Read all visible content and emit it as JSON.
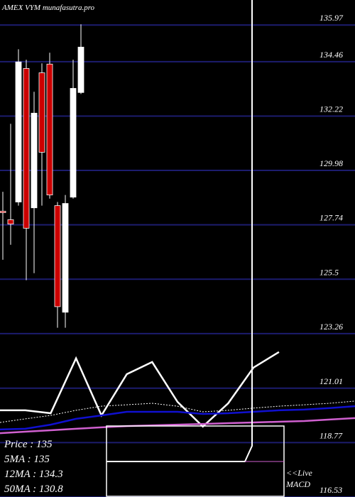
{
  "chart_data": {
    "type": "candlestick",
    "title": "AMEX  VYM munafasutra.pro",
    "ylim": [
      116.53,
      137.0
    ],
    "yticks": [
      135.97,
      134.46,
      132.22,
      129.98,
      127.74,
      125.5,
      123.26,
      121.01,
      118.77,
      116.53
    ],
    "grid": true,
    "grid_color": "#1c1c6e",
    "up_color": "#ffffff",
    "down_color": "#cc0000",
    "candles": [
      {
        "open": 128.3,
        "high": 129.1,
        "low": 126.3,
        "close": 128.25
      },
      {
        "open": 127.95,
        "high": 131.9,
        "low": 126.92,
        "close": 127.77
      },
      {
        "open": 128.68,
        "high": 134.97,
        "low": 128.53,
        "close": 134.45
      },
      {
        "open": 134.18,
        "high": 134.54,
        "low": 125.46,
        "close": 127.6
      },
      {
        "open": 128.44,
        "high": 133.22,
        "low": 125.75,
        "close": 132.34
      },
      {
        "open": 134.0,
        "high": 134.39,
        "low": 128.53,
        "close": 130.73
      },
      {
        "open": 134.36,
        "high": 134.83,
        "low": 128.82,
        "close": 128.97
      },
      {
        "open": 128.53,
        "high": 128.68,
        "low": 123.5,
        "close": 124.37
      },
      {
        "open": 124.14,
        "high": 128.97,
        "low": 123.5,
        "close": 128.62
      },
      {
        "open": 128.88,
        "high": 134.54,
        "low": 128.82,
        "close": 133.36
      },
      {
        "open": 133.19,
        "high": 136.0,
        "low": 133.13,
        "close": 135.06
      }
    ],
    "indicator_series": [
      {
        "color": "#ffffff",
        "dash": false,
        "width": 2.5,
        "values": [
          120.1,
          120.1,
          119.98,
          122.24,
          119.89,
          121.59,
          122.09,
          120.45,
          119.43,
          120.39,
          121.86,
          122.5
        ]
      },
      {
        "color": "#ffffff",
        "dash": true,
        "width": 1,
        "values": [
          119.6,
          119.75,
          119.89,
          120.1,
          120.27,
          120.33,
          120.39,
          120.27,
          120.04,
          120.1,
          120.19,
          120.27,
          120.33,
          120.39,
          120.48
        ]
      },
      {
        "color": "#1010d0",
        "dash": false,
        "width": 2.5,
        "values": [
          119.31,
          119.34,
          119.51,
          119.75,
          119.89,
          120.04,
          120.04,
          120.04,
          119.95,
          119.98,
          120.04,
          120.1,
          120.13,
          120.19,
          120.27
        ]
      },
      {
        "color": "#d060d0",
        "dash": false,
        "width": 2.5,
        "values": [
          119.16,
          119.22,
          119.28,
          119.34,
          119.4,
          119.45,
          119.48,
          119.51,
          119.54,
          119.57,
          119.6,
          119.63,
          119.66,
          119.72,
          119.78
        ]
      }
    ],
    "info": [
      "Price   : 135",
      "5MA : 135",
      "12MA : 134.3",
      "50MA : 130.8"
    ],
    "live_label": "<<Live",
    "macd_label": "MACD"
  }
}
